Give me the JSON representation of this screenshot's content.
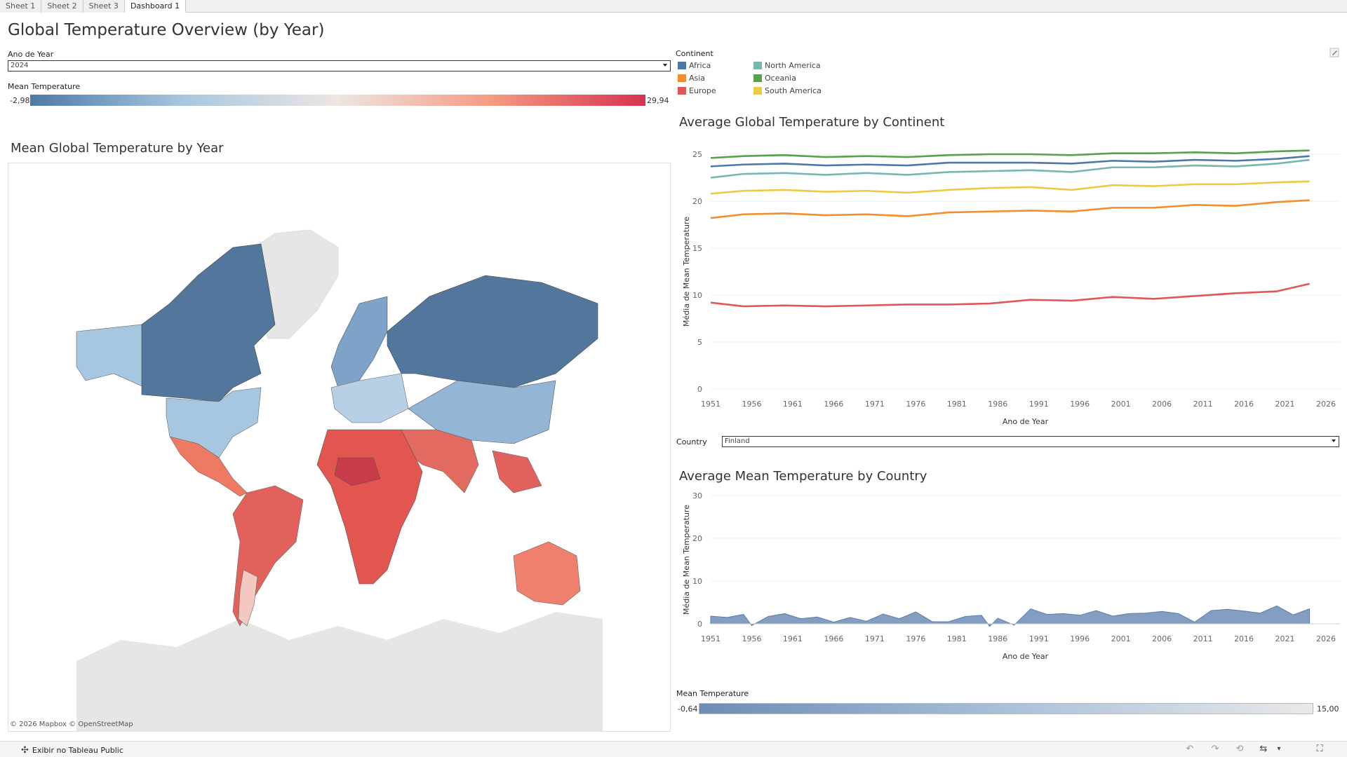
{
  "tabs": [
    {
      "label": "Sheet 1",
      "active": false
    },
    {
      "label": "Sheet 2",
      "active": false
    },
    {
      "label": "Sheet 3",
      "active": false
    },
    {
      "label": "Dashboard 1",
      "active": true
    }
  ],
  "dashboard_title": "Global Temperature Overview (by Year)",
  "year_filter": {
    "label": "Ano de Year",
    "value": "2024"
  },
  "temp_legend": {
    "label": "Mean Temperature",
    "min": "-2,98",
    "max": "29,94",
    "colors": [
      "#4e79a7",
      "#a7c7e0",
      "#ede6e2",
      "#f59a83",
      "#d6334f"
    ]
  },
  "continent_legend": {
    "title": "Continent",
    "items": [
      {
        "label": "Africa",
        "color": "#4e79a7"
      },
      {
        "label": "North America",
        "color": "#76b7b2"
      },
      {
        "label": "Asia",
        "color": "#f28e2b"
      },
      {
        "label": "Oceania",
        "color": "#59a14f"
      },
      {
        "label": "Europe",
        "color": "#e15759"
      },
      {
        "label": "South America",
        "color": "#edc948"
      }
    ]
  },
  "map": {
    "title": "Mean Global Temperature by Year",
    "attribution": "© 2026 Mapbox  © OpenStreetMap"
  },
  "continent_chart_title": "Average Global Temperature by Continent",
  "country_filter": {
    "label": "Country",
    "value": "Finland"
  },
  "country_chart_title": "Average Mean Temperature by Country",
  "country_legend": {
    "label": "Mean Temperature",
    "min": "-0,64",
    "max": "15,00",
    "colors": [
      "#6d8db5",
      "#a9c0da",
      "#e9e9e9"
    ]
  },
  "chart_data": [
    {
      "type": "line",
      "title": "Average Global Temperature by Continent",
      "xlabel": "Ano de Year",
      "ylabel": "Média de Mean Temperature",
      "ylim": [
        0,
        25
      ],
      "yticks": [
        0,
        5,
        10,
        15,
        20,
        25
      ],
      "xlim": [
        1951,
        2026
      ],
      "xticks": [
        1951,
        1956,
        1961,
        1966,
        1971,
        1976,
        1981,
        1986,
        1991,
        1996,
        2001,
        2006,
        2011,
        2016,
        2021,
        2026
      ],
      "x": [
        1951,
        1955,
        1960,
        1965,
        1970,
        1975,
        1980,
        1985,
        1990,
        1995,
        2000,
        2005,
        2010,
        2015,
        2020,
        2024
      ],
      "series": [
        {
          "name": "Oceania",
          "color": "#59a14f",
          "values": [
            24.6,
            24.8,
            24.9,
            24.7,
            24.8,
            24.7,
            24.9,
            25.0,
            25.0,
            24.9,
            25.1,
            25.1,
            25.2,
            25.1,
            25.3,
            25.4
          ]
        },
        {
          "name": "Africa",
          "color": "#4e79a7",
          "values": [
            23.7,
            23.9,
            24.0,
            23.8,
            23.9,
            23.8,
            24.1,
            24.1,
            24.1,
            24.0,
            24.3,
            24.2,
            24.4,
            24.3,
            24.5,
            24.8
          ]
        },
        {
          "name": "North America",
          "color": "#76b7b2",
          "values": [
            22.5,
            22.9,
            23.0,
            22.8,
            23.0,
            22.8,
            23.1,
            23.2,
            23.3,
            23.1,
            23.6,
            23.6,
            23.8,
            23.7,
            24.0,
            24.4
          ]
        },
        {
          "name": "South America",
          "color": "#edc948",
          "values": [
            20.8,
            21.1,
            21.2,
            21.0,
            21.1,
            20.9,
            21.2,
            21.4,
            21.5,
            21.2,
            21.7,
            21.6,
            21.8,
            21.8,
            22.0,
            22.1
          ]
        },
        {
          "name": "Asia",
          "color": "#f28e2b",
          "values": [
            18.2,
            18.6,
            18.7,
            18.5,
            18.6,
            18.4,
            18.8,
            18.9,
            19.0,
            18.9,
            19.3,
            19.3,
            19.6,
            19.5,
            19.9,
            20.1
          ]
        },
        {
          "name": "Europe",
          "color": "#e15759",
          "values": [
            9.2,
            8.8,
            8.9,
            8.8,
            8.9,
            9.0,
            9.0,
            9.1,
            9.5,
            9.4,
            9.8,
            9.6,
            9.9,
            10.2,
            10.4,
            11.2
          ]
        }
      ]
    },
    {
      "type": "area",
      "title": "Average Mean Temperature by Country",
      "xlabel": "Ano de Year",
      "ylabel": "Média de Mean Temperature",
      "ylim": [
        0,
        30
      ],
      "yticks": [
        0,
        10,
        20,
        30
      ],
      "xlim": [
        1951,
        2026
      ],
      "xticks": [
        1951,
        1956,
        1961,
        1966,
        1971,
        1976,
        1981,
        1986,
        1991,
        1996,
        2001,
        2006,
        2011,
        2016,
        2021,
        2026
      ],
      "color": "#6d8db5",
      "x": [
        1951,
        1953,
        1955,
        1956,
        1958,
        1960,
        1962,
        1964,
        1966,
        1968,
        1970,
        1972,
        1974,
        1976,
        1978,
        1980,
        1982,
        1984,
        1985,
        1986,
        1988,
        1990,
        1992,
        1994,
        1996,
        1998,
        2000,
        2002,
        2004,
        2006,
        2008,
        2010,
        2012,
        2014,
        2016,
        2018,
        2020,
        2022,
        2024
      ],
      "values": [
        1.8,
        1.5,
        2.2,
        -0.4,
        1.7,
        2.4,
        1.2,
        1.6,
        0.4,
        1.5,
        0.6,
        2.3,
        1.2,
        2.8,
        0.5,
        0.5,
        1.7,
        2.0,
        -0.6,
        1.3,
        -0.3,
        3.5,
        2.2,
        2.4,
        2.0,
        3.1,
        1.8,
        2.4,
        2.5,
        2.9,
        2.4,
        0.4,
        3.1,
        3.4,
        3.0,
        2.5,
        4.2,
        2.1,
        3.5
      ]
    }
  ]
}
